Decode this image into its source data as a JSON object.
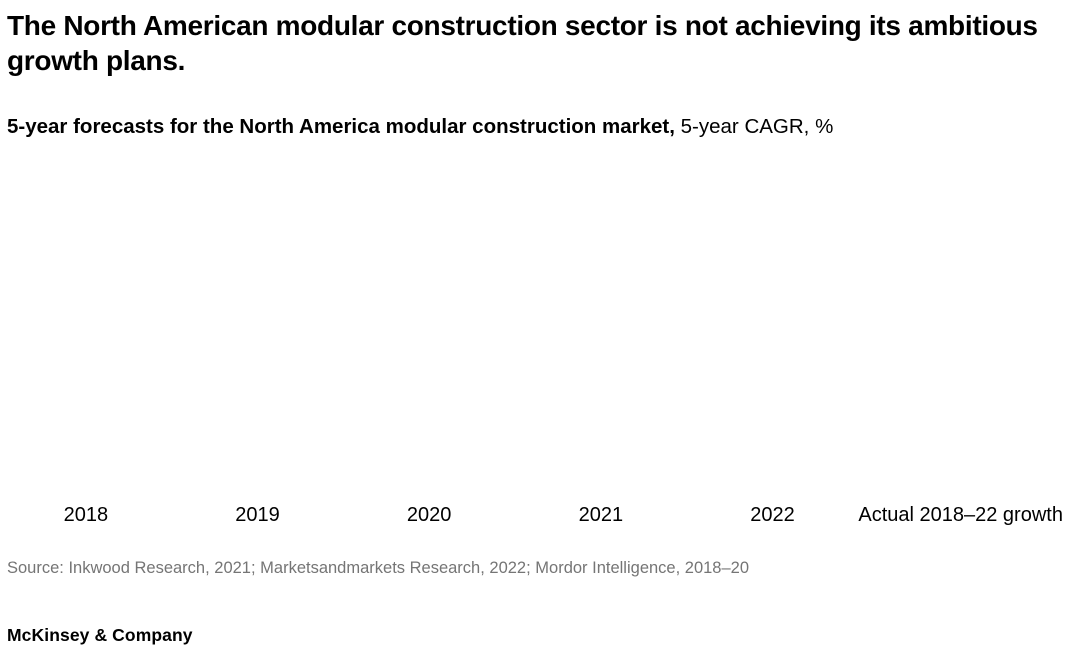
{
  "header": {
    "title": "The North American modular construction sector is not achieving its ambitious growth plans.",
    "subtitle_bold": "5-year forecasts for the North America modular construction market,",
    "subtitle_regular": " 5-year CAGR, %"
  },
  "chart_data": {
    "type": "bar",
    "title": "5-year forecasts for the North America modular construction market",
    "ylabel": "5-year CAGR, %",
    "categories": [
      "2018",
      "2019",
      "2020",
      "2021",
      "2022",
      "Actual 2018–22 growth"
    ],
    "series": [],
    "layout_hints": {
      "plot_area_empty": true,
      "grid": "off",
      "axis_lines": "none",
      "note": "no bars, gridlines or values are rendered in the plot area of the screenshot; only category labels are visible"
    }
  },
  "footer": {
    "source": "Source: Inkwood Research, 2021; Marketsandmarkets Research, 2022; Mordor Intelligence, 2018–20",
    "brand": "McKinsey & Company"
  },
  "colors": {
    "background": "#ffffff",
    "text": "#000000",
    "source_text": "#757575"
  }
}
